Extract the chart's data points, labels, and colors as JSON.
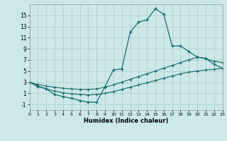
{
  "xlabel": "Humidex (Indice chaleur)",
  "background_color": "#cce8e8",
  "grid_color": "#aacccc",
  "line_color": "#1a6b6b",
  "x_main": [
    0,
    1,
    2,
    3,
    4,
    5,
    6,
    7,
    8,
    9,
    10,
    11,
    12,
    13,
    14,
    15,
    16,
    17,
    18,
    19,
    20,
    21,
    22,
    23
  ],
  "y_main": [
    3.0,
    2.2,
    1.8,
    0.8,
    0.4,
    0.1,
    -0.3,
    -0.6,
    -0.6,
    2.2,
    5.2,
    5.4,
    12.0,
    13.8,
    14.2,
    16.2,
    15.2,
    9.5,
    9.5,
    8.5,
    7.5,
    7.3,
    6.2,
    5.5
  ],
  "x_upper": [
    0,
    1,
    2,
    3,
    4,
    5,
    6,
    7,
    8,
    9,
    10,
    11,
    12,
    13,
    14,
    15,
    16,
    17,
    18,
    19,
    20,
    21,
    22,
    23
  ],
  "y_upper": [
    3.0,
    2.6,
    2.3,
    2.1,
    1.9,
    1.8,
    1.7,
    1.7,
    1.8,
    2.1,
    2.5,
    3.0,
    3.5,
    4.0,
    4.5,
    5.0,
    5.5,
    6.0,
    6.5,
    7.0,
    7.5,
    7.2,
    6.8,
    6.5
  ],
  "x_lower": [
    0,
    1,
    2,
    3,
    4,
    5,
    6,
    7,
    8,
    9,
    10,
    11,
    12,
    13,
    14,
    15,
    16,
    17,
    18,
    19,
    20,
    21,
    22,
    23
  ],
  "y_lower": [
    3.0,
    2.3,
    1.8,
    1.4,
    1.1,
    0.9,
    0.8,
    0.7,
    0.8,
    1.0,
    1.3,
    1.7,
    2.1,
    2.5,
    2.9,
    3.3,
    3.7,
    4.1,
    4.5,
    4.8,
    5.0,
    5.2,
    5.3,
    5.5
  ],
  "ylim": [
    -2,
    17
  ],
  "xlim": [
    0,
    23
  ],
  "yticks": [
    -1,
    1,
    3,
    5,
    7,
    9,
    11,
    13,
    15
  ],
  "xticks": [
    0,
    1,
    2,
    3,
    4,
    5,
    6,
    7,
    8,
    9,
    10,
    11,
    12,
    13,
    14,
    15,
    16,
    17,
    18,
    19,
    20,
    21,
    22,
    23
  ]
}
